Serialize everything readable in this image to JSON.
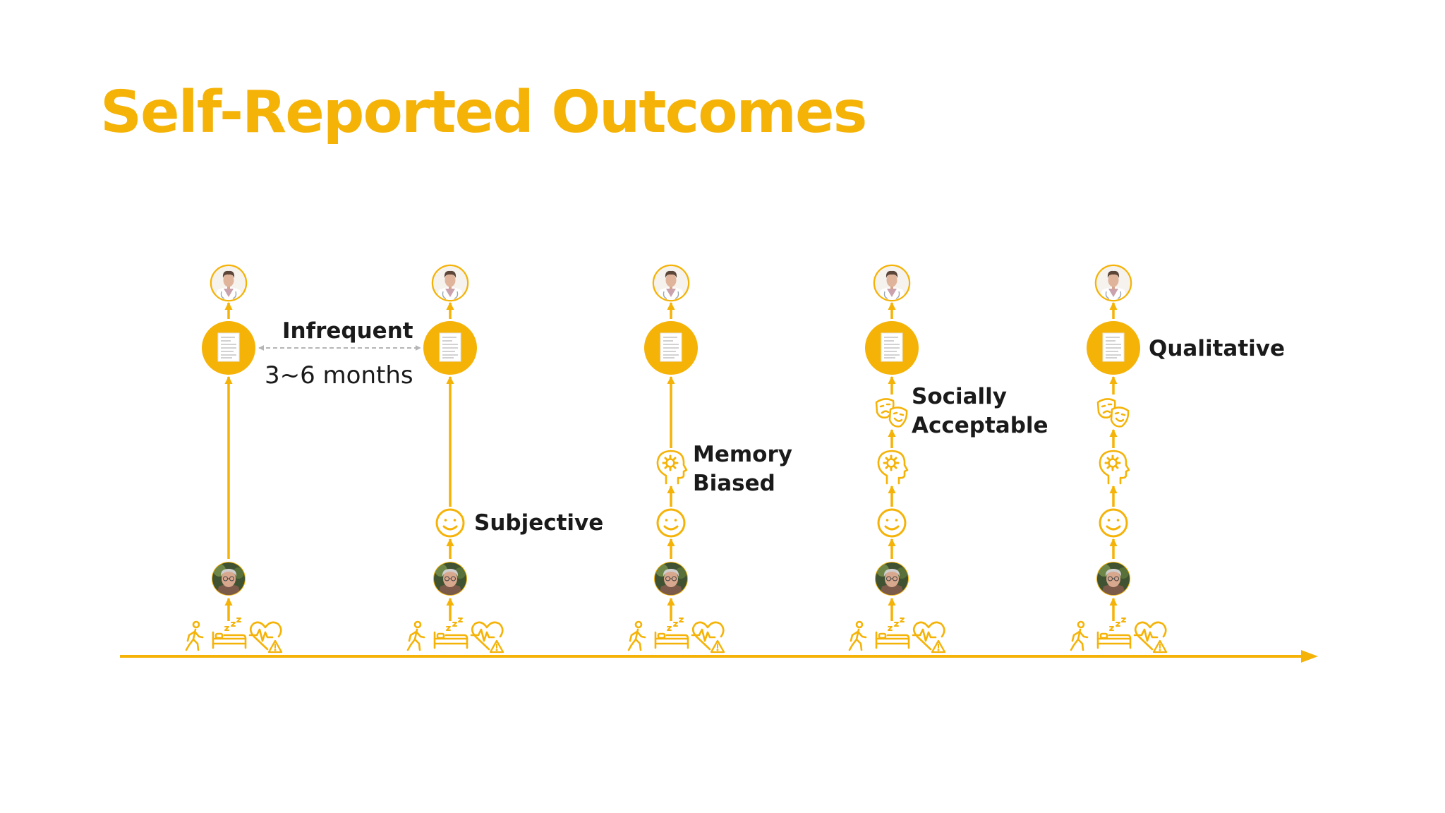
{
  "title": "Self-Reported Outcomes",
  "colors": {
    "accent": "#F5B308",
    "text": "#1a1a1a",
    "gap_arrow": "#B5B5B5"
  },
  "icons": {
    "clinician": "clinician-avatar",
    "report": "report-document-icon",
    "patient": "patient-avatar",
    "activity": [
      "walking-person-icon",
      "sleep-bed-icon",
      "heart-rate-alert-icon"
    ],
    "filters": [
      "smiley-face-icon",
      "head-gear-icon",
      "theater-masks-icon"
    ]
  },
  "labels": {
    "infrequent": "Infrequent",
    "interval": "3~6 months",
    "subjective": "Subjective",
    "memory": [
      "Memory",
      "Biased"
    ],
    "social": [
      "Socially",
      "Acceptable"
    ],
    "qualitative": "Qualitative"
  },
  "stages": [
    {
      "filters": []
    },
    {
      "filters": [
        "smiley-face-icon"
      ]
    },
    {
      "filters": [
        "smiley-face-icon",
        "head-gear-icon"
      ]
    },
    {
      "filters": [
        "smiley-face-icon",
        "head-gear-icon",
        "theater-masks-icon"
      ]
    },
    {
      "filters": [
        "smiley-face-icon",
        "head-gear-icon",
        "theater-masks-icon"
      ]
    }
  ]
}
